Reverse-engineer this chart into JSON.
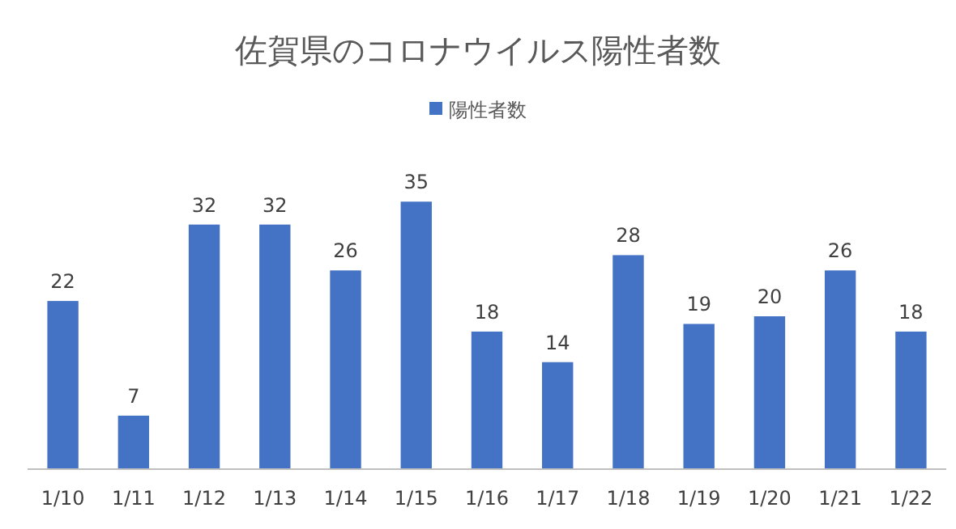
{
  "chart_data": {
    "type": "bar",
    "title": "佐賀県のコロナウイルス陽性者数",
    "categories": [
      "1/10",
      "1/11",
      "1/12",
      "1/13",
      "1/14",
      "1/15",
      "1/16",
      "1/17",
      "1/18",
      "1/19",
      "1/20",
      "1/21",
      "1/22"
    ],
    "series": [
      {
        "name": "陽性者数",
        "color": "#4472c4",
        "values": [
          22,
          7,
          32,
          32,
          26,
          35,
          18,
          14,
          28,
          19,
          20,
          26,
          18
        ]
      }
    ],
    "tick_labels": "x",
    "data_labels": true,
    "legend": "top"
  }
}
